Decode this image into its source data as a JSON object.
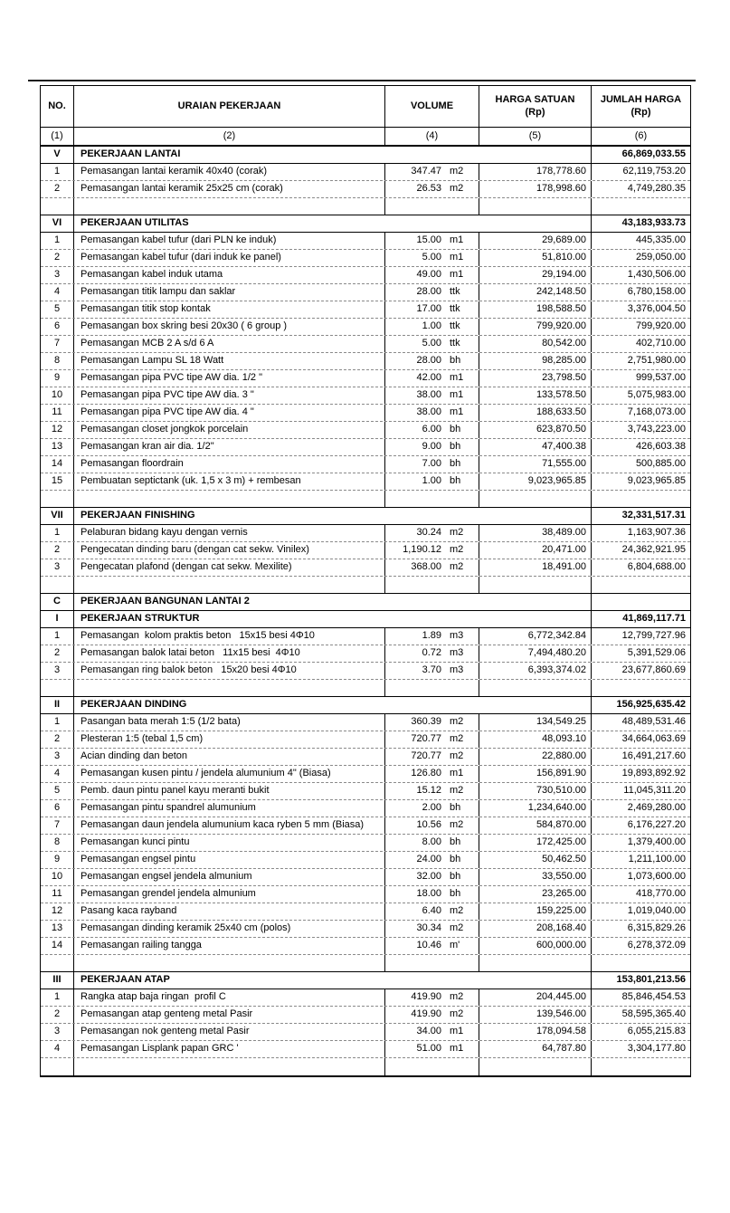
{
  "table": {
    "header": {
      "no": "NO.",
      "uraian": "URAIAN PEKERJAAN",
      "volume": "VOLUME",
      "harga_satuan_line1": "HARGA SATUAN",
      "harga_satuan_line2": "(Rp)",
      "jumlah_harga_line1": "JUMLAH HARGA",
      "jumlah_harga_line2": "(Rp)"
    },
    "column_numbers": {
      "c1": "(1)",
      "c2": "(2)",
      "c4": "(4)",
      "c5": "(5)",
      "c6": "(6)"
    },
    "sections": [
      {
        "no": "V",
        "title": "PEKERJAAN LANTAI",
        "total": "66,869,033.55",
        "spacer_after": true,
        "items": [
          {
            "no": "1",
            "desc": "Pemasangan lantai keramik 40x40 (corak)",
            "vol": "347.47",
            "unit": "m2",
            "harga_satuan": "178,778.60",
            "jumlah": "62,119,753.20"
          },
          {
            "no": "2",
            "desc": "Pemasangan lantai keramik 25x25 cm (corak)",
            "vol": "26.53",
            "unit": "m2",
            "harga_satuan": "178,998.60",
            "jumlah": "4,749,280.35"
          }
        ]
      },
      {
        "no": "VI",
        "title": "PEKERJAAN UTILITAS",
        "total": "43,183,933.73",
        "spacer_after": true,
        "items": [
          {
            "no": "1",
            "desc": "Pemasangan kabel tufur (dari PLN ke induk)",
            "vol": "15.00",
            "unit": "m1",
            "harga_satuan": "29,689.00",
            "jumlah": "445,335.00"
          },
          {
            "no": "2",
            "desc": "Pemasangan kabel tufur (dari induk ke panel)",
            "vol": "5.00",
            "unit": "m1",
            "harga_satuan": "51,810.00",
            "jumlah": "259,050.00"
          },
          {
            "no": "3",
            "desc": "Pemasangan kabel induk utama",
            "vol": "49.00",
            "unit": "m1",
            "harga_satuan": "29,194.00",
            "jumlah": "1,430,506.00"
          },
          {
            "no": "4",
            "desc": "Pemasangan titik lampu dan saklar",
            "vol": "28.00",
            "unit": "ttk",
            "harga_satuan": "242,148.50",
            "jumlah": "6,780,158.00"
          },
          {
            "no": "5",
            "desc": "Pemasangan titik stop kontak",
            "vol": "17.00",
            "unit": "ttk",
            "harga_satuan": "198,588.50",
            "jumlah": "3,376,004.50"
          },
          {
            "no": "6",
            "desc": "Pemasangan box skring besi 20x30 ( 6 group )",
            "vol": "1.00",
            "unit": "ttk",
            "harga_satuan": "799,920.00",
            "jumlah": "799,920.00"
          },
          {
            "no": "7",
            "desc": "Pemasangan MCB 2 A s/d 6 A",
            "vol": "5.00",
            "unit": "ttk",
            "harga_satuan": "80,542.00",
            "jumlah": "402,710.00"
          },
          {
            "no": "8",
            "desc": "Pemasangan Lampu SL 18 Watt",
            "vol": "28.00",
            "unit": "bh",
            "harga_satuan": "98,285.00",
            "jumlah": "2,751,980.00"
          },
          {
            "no": "9",
            "desc": "Pemasangan pipa PVC tipe AW dia. 1/2 \"",
            "vol": "42.00",
            "unit": "m1",
            "harga_satuan": "23,798.50",
            "jumlah": "999,537.00"
          },
          {
            "no": "10",
            "desc": "Pemasangan pipa PVC tipe AW dia. 3 \"",
            "vol": "38.00",
            "unit": "m1",
            "harga_satuan": "133,578.50",
            "jumlah": "5,075,983.00"
          },
          {
            "no": "11",
            "desc": "Pemasangan pipa PVC tipe AW dia. 4 \"",
            "vol": "38.00",
            "unit": "m1",
            "harga_satuan": "188,633.50",
            "jumlah": "7,168,073.00"
          },
          {
            "no": "12",
            "desc": "Pemasangan closet jongkok porcelain",
            "vol": "6.00",
            "unit": "bh",
            "harga_satuan": "623,870.50",
            "jumlah": "3,743,223.00"
          },
          {
            "no": "13",
            "desc": "Pemasangan kran air dia. 1/2\"",
            "vol": "9.00",
            "unit": "bh",
            "harga_satuan": "47,400.38",
            "jumlah": "426,603.38"
          },
          {
            "no": "14",
            "desc": "Pemasangan floordrain",
            "vol": "7.00",
            "unit": "bh",
            "harga_satuan": "71,555.00",
            "jumlah": "500,885.00"
          },
          {
            "no": "15",
            "desc": "Pembuatan septictank (uk. 1,5 x 3 m) + rembesan",
            "vol": "1.00",
            "unit": "bh",
            "harga_satuan": "9,023,965.85",
            "jumlah": "9,023,965.85"
          }
        ]
      },
      {
        "no": "VII",
        "title": "PEKERJAAN FINISHING",
        "total": "32,331,517.31",
        "spacer_after": true,
        "items": [
          {
            "no": "1",
            "desc": "Pelaburan bidang kayu dengan vernis",
            "vol": "30.24",
            "unit": "m2",
            "harga_satuan": "38,489.00",
            "jumlah": "1,163,907.36"
          },
          {
            "no": "2",
            "desc": "Pengecatan dinding baru (dengan cat sekw. Vinilex)",
            "vol": "1,190.12",
            "unit": "m2",
            "harga_satuan": "20,471.00",
            "jumlah": "24,362,921.95"
          },
          {
            "no": "3",
            "desc": "Pengecatan plafond (dengan cat sekw. Mexilite)",
            "vol": "368.00",
            "unit": "m2",
            "harga_satuan": "18,491.00",
            "jumlah": "6,804,688.00"
          }
        ]
      },
      {
        "no": "C",
        "title": "PEKERJAAN BANGUNAN LANTAI 2",
        "total": "",
        "spacer_after": false,
        "items": []
      },
      {
        "no": "I",
        "title": "PEKERJAAN STRUKTUR",
        "total": "41,869,117.71",
        "spacer_after": true,
        "items": [
          {
            "no": "1",
            "desc": "Pemasangan  kolom praktis beton   15x15 besi 4Φ10",
            "vol": "1.89",
            "unit": "m3",
            "harga_satuan": "6,772,342.84",
            "jumlah": "12,799,727.96"
          },
          {
            "no": "2",
            "desc": "Pemasangan balok latai beton   11x15 besi  4Φ10",
            "vol": "0.72",
            "unit": "m3",
            "harga_satuan": "7,494,480.20",
            "jumlah": "5,391,529.06"
          },
          {
            "no": "3",
            "desc": "Pemasangan ring balok beton   15x20 besi 4Φ10",
            "vol": "3.70",
            "unit": "m3",
            "harga_satuan": "6,393,374.02",
            "jumlah": "23,677,860.69"
          }
        ]
      },
      {
        "no": "II",
        "title": "PEKERJAAN DINDING",
        "total": "156,925,635.42",
        "spacer_after": true,
        "items": [
          {
            "no": "1",
            "desc": "Pasangan bata merah 1:5 (1/2 bata)",
            "vol": "360.39",
            "unit": "m2",
            "harga_satuan": "134,549.25",
            "jumlah": "48,489,531.46"
          },
          {
            "no": "2",
            "desc": "Plesteran 1:5 (tebal 1,5 cm)",
            "vol": "720.77",
            "unit": "m2",
            "harga_satuan": "48,093.10",
            "jumlah": "34,664,063.69"
          },
          {
            "no": "3",
            "desc": "Acian dinding dan beton",
            "vol": "720.77",
            "unit": "m2",
            "harga_satuan": "22,880.00",
            "jumlah": "16,491,217.60"
          },
          {
            "no": "4",
            "desc": "Pemasangan kusen pintu / jendela alumunium 4\" (Biasa)",
            "vol": "126.80",
            "unit": "m1",
            "harga_satuan": "156,891.90",
            "jumlah": "19,893,892.92"
          },
          {
            "no": "5",
            "desc": "Pemb. daun pintu panel kayu meranti bukit",
            "vol": "15.12",
            "unit": "m2",
            "harga_satuan": "730,510.00",
            "jumlah": "11,045,311.20"
          },
          {
            "no": "6",
            "desc": "Pemasangan pintu spandrel alumunium",
            "vol": "2.00",
            "unit": "bh",
            "harga_satuan": "1,234,640.00",
            "jumlah": "2,469,280.00"
          },
          {
            "no": "7",
            "desc": "Pemasangan daun jendela alumunium kaca ryben 5 mm (Biasa)",
            "vol": "10.56",
            "unit": "m2",
            "harga_satuan": "584,870.00",
            "jumlah": "6,176,227.20"
          },
          {
            "no": "8",
            "desc": "Pemasangan kunci pintu",
            "vol": "8.00",
            "unit": "bh",
            "harga_satuan": "172,425.00",
            "jumlah": "1,379,400.00"
          },
          {
            "no": "9",
            "desc": "Pemasangan engsel pintu",
            "vol": "24.00",
            "unit": "bh",
            "harga_satuan": "50,462.50",
            "jumlah": "1,211,100.00"
          },
          {
            "no": "10",
            "desc": "Pemasangan engsel jendela almunium",
            "vol": "32.00",
            "unit": "bh",
            "harga_satuan": "33,550.00",
            "jumlah": "1,073,600.00"
          },
          {
            "no": "11",
            "desc": "Pemasangan grendel jendela almunium",
            "vol": "18.00",
            "unit": "bh",
            "harga_satuan": "23,265.00",
            "jumlah": "418,770.00"
          },
          {
            "no": "12",
            "desc": "Pasang kaca rayband",
            "vol": "6.40",
            "unit": "m2",
            "harga_satuan": "159,225.00",
            "jumlah": "1,019,040.00"
          },
          {
            "no": "13",
            "desc": "Pemasangan dinding keramik 25x40 cm (polos)",
            "vol": "30.34",
            "unit": "m2",
            "harga_satuan": "208,168.40",
            "jumlah": "6,315,829.26"
          },
          {
            "no": "14",
            "desc": "Pemasangan railing tangga",
            "vol": "10.46",
            "unit": "m'",
            "harga_satuan": "600,000.00",
            "jumlah": "6,278,372.09"
          }
        ]
      },
      {
        "no": "III",
        "title": "PEKERJAAN ATAP",
        "total": "153,801,213.56",
        "spacer_after": true,
        "items": [
          {
            "no": "1",
            "desc": "Rangka atap baja ringan  profil C",
            "vol": "419.90",
            "unit": "m2",
            "harga_satuan": "204,445.00",
            "jumlah": "85,846,454.53"
          },
          {
            "no": "2",
            "desc": "Pemasangan atap genteng metal Pasir",
            "vol": "419.90",
            "unit": "m2",
            "harga_satuan": "139,546.00",
            "jumlah": "58,595,365.40"
          },
          {
            "no": "3",
            "desc": "Pemasangan nok genteng metal Pasir",
            "vol": "34.00",
            "unit": "m1",
            "harga_satuan": "178,094.58",
            "jumlah": "6,055,215.83"
          },
          {
            "no": "4",
            "desc": "Pemasangan Lisplank papan GRC '",
            "vol": "51.00",
            "unit": "m1",
            "harga_satuan": "64,787.80",
            "jumlah": "3,304,177.80"
          }
        ]
      }
    ]
  }
}
